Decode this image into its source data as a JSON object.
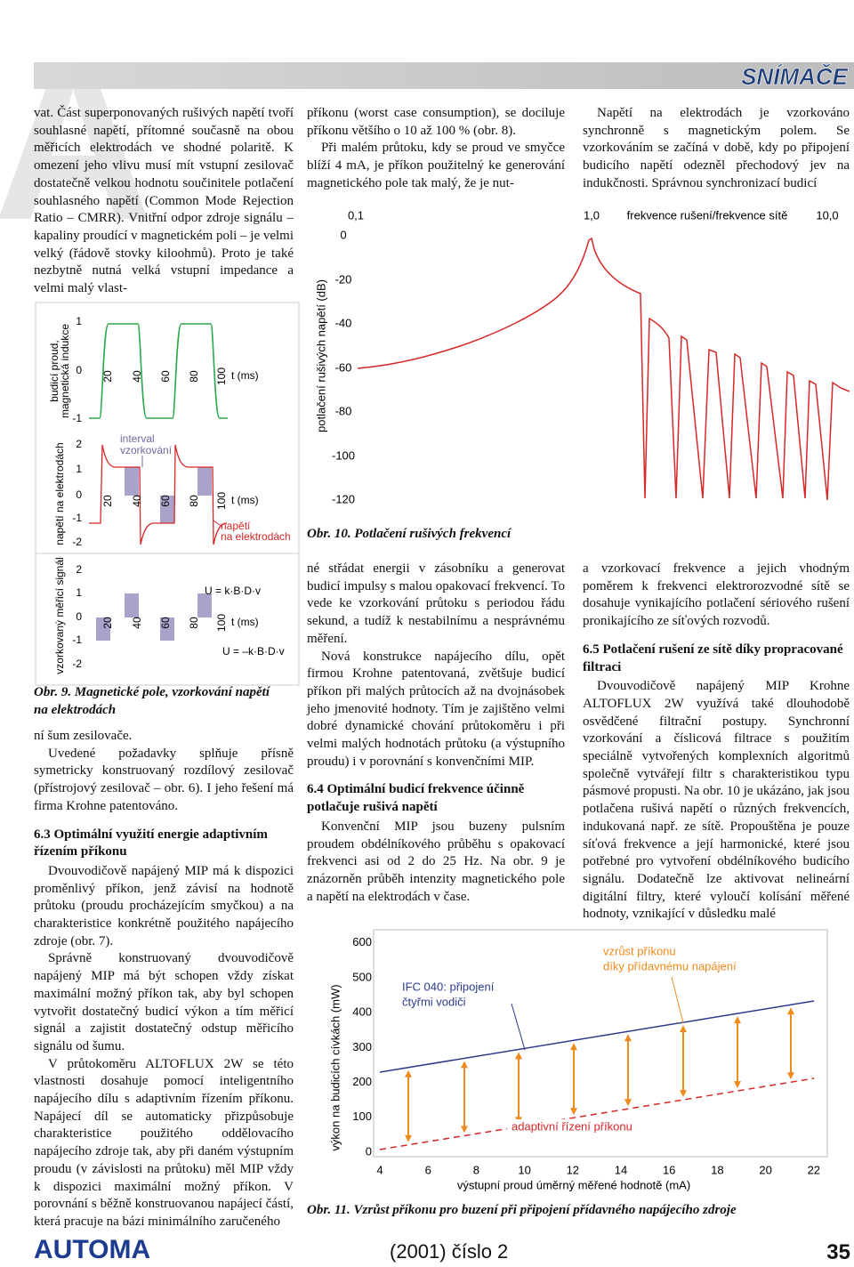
{
  "header": {
    "decor_letter": "A",
    "section": "SNÍMAČE"
  },
  "text": {
    "c1a": [
      "vat. Část superponovaných rušivých napětí tvoří souhlasné napětí, přítomné současně na obou měřicích elektrodách ve shodné polaritě. K omezení jeho vlivu musí mít vstupní zesilovač dostatečně velkou hodnotu součinitele potlačení souhlasného napětí (Common Mode Rejection Ratio – CMRR). Vnitřní odpor zdroje signálu – kapaliny proudící v magnetickém poli – je velmi velký (řádově stovky kiloohmů). Proto je také nezbytně nutná velká vstupní impedance a velmi malý vlast-"
    ],
    "c2a": [
      "příkonu (worst case consumption), se dociluje příkonu většího o 10 až 100 % (obr. 8).",
      "Při malém průtoku, kdy se proud ve smyčce blíží 4 mA, je příkon použitelný ke generování magnetického pole tak malý, že je nut-"
    ],
    "c3a": [
      "Napětí na elektrodách je vzorkováno synchronně s magnetickým polem. Se vzorkováním se začíná v době, kdy po připojení budicího napětí odezněl přechodový jev na indukčnosti. Správnou synchronizací budicí"
    ],
    "c1b": {
      "before": [
        "ní šum zesilovače.",
        "Uvedené požadavky splňuje přísně symetricky konstruovaný rozdílový zesilovač (přístrojový zesilovač – obr. 6). I jeho řešení má firma Krohne patentováno."
      ],
      "heading": "6.3 Optimální využití energie adaptivním řízením příkonu",
      "after": [
        "Dvouvodičově napájený MIP má k dispozici proměnlivý příkon, jenž závisí na hodnotě průtoku (proudu procházejícím smyčkou) a na charakteristice konkrétně použitého napájecího zdroje (obr. 7).",
        "Správně konstruovaný dvouvodičově napájený MIP má být schopen vždy získat maximální možný příkon tak, aby byl schopen vytvořit dostatečný budicí výkon a tím měřicí signál a zajistit dostatečný odstup měřicího signálu od šumu.",
        "V průtokoměru ALTOFLUX 2W se této vlastnosti dosahuje pomocí inteligentního napájecího dílu s adaptivním řízením příkonu. Napájecí díl se automaticky přizpůsobuje charakteristice použitého oddělovacího napájecího zdroje tak, aby při daném výstupním proudu (v závislosti na průtoku) měl MIP vždy k dispozici maximální možný příkon. V porovnání s běžně konstruovanou napájecí částí, která pracuje na bázi minimálního zaručeného"
      ]
    },
    "c2b": {
      "before": [
        "né střádat energii v zásobníku a generovat budicí impulsy s malou opakovací frekvencí. To vede ke vzorkování průtoku s periodou řádu sekund, a tudíž k nestabilnímu a nesprávnému měření.",
        "Nová konstrukce napájecího dílu, opět firmou Krohne patentovaná, zvětšuje budicí příkon při malých průtocích až na dvojnásobek jeho jmenovité hodnoty. Tím je zajištěno velmi dobré dynamické chování průtokoměru i při velmi malých hodnotách průtoku (a výstupního proudu) i v porovnání s konvenčními MIP."
      ],
      "heading": "6.4 Optimální budicí frekvence účinně potlačuje rušivá napětí",
      "after": [
        "Konvenční MIP jsou buzeny pulsním proudem obdélníkového průběhu s opakovací frekvenci asi od 2 do 25 Hz. Na obr. 9 je znázorněn průběh intenzity magnetického pole a napětí na elektrodách v čase."
      ]
    },
    "c3b": {
      "before": [
        "a vzorkovací frekvence a jejich vhodným poměrem k frekvenci elektrorozvodné sítě se dosahuje vynikajícího potlačení sériového rušení pronikajícího ze síťových rozvodů."
      ],
      "heading": "6.5 Potlačení rušení ze sítě díky propracované filtraci",
      "after": [
        "Dvouvodičově napájený MIP Krohne ALTOFLUX 2W využívá také dlouhodobě osvědčené filtrační postupy. Synchronní vzorkování a číslicová filtrace s použitím speciálně vytvořených komplexních algoritmů společně vytvářejí filtr s charakteristikou typu pásmové propusti. Na obr. 10 je ukázáno, jak jsou potlačena rušivá napětí o různých frekvencích, indukovaná např. ze sítě. Propouštěna je pouze síťová frekvence a její harmonické, které jsou potřebné pro vytvoření obdélníkového budicího signálu. Dodatečně lze aktivovat nelineární digitální filtry, které vyloučí kolísání měřené hodnoty, vznikající v důsledku malé"
      ]
    }
  },
  "fig9": {
    "caption": "Obr. 9. Magnetické pole, vzorkování napětí na elektrodách",
    "panels": [
      {
        "ylabel": [
          "budicí proud,",
          "magnetická indukce"
        ],
        "yticks": [
          "1",
          "0",
          "-1"
        ],
        "xticks": [
          "20",
          "40",
          "60",
          "80",
          "100"
        ],
        "xunit": "t (ms)"
      },
      {
        "ylabel": [
          "napětí na elektrodách"
        ],
        "yticks": [
          "2",
          "1",
          "0",
          "-1",
          "-2"
        ],
        "xticks": [
          "20",
          "40",
          "60",
          "80",
          "100"
        ],
        "xunit": "t (ms)"
      },
      {
        "ylabel": [
          "vzorkovaný měřicí signál"
        ],
        "yticks": [
          "2",
          "1",
          "0",
          "-1",
          "-2"
        ],
        "xticks": [
          "20",
          "40",
          "60",
          "80",
          "100"
        ],
        "xunit": "t (ms)"
      }
    ],
    "annotations": {
      "interval": [
        "interval",
        "vzorkování"
      ],
      "electrode": [
        "napětí",
        "na elektrodách"
      ],
      "upos": "U = k·B·D·v",
      "uneg": "U = –k·B·D·v"
    }
  },
  "fig10": {
    "caption": "Obr. 10. Potlačení rušivých frekvencí",
    "ylabel": "potlačení rušivých napětí (dB)",
    "xlabel": "frekvence rušení/frekvence sítě",
    "xticks": [
      "0,1",
      "1,0",
      "10,0"
    ],
    "yticks": [
      "0",
      "-20",
      "-40",
      "-60",
      "-80",
      "-100",
      "-120"
    ]
  },
  "fig11": {
    "caption": "Obr. 11. Vzrůst příkonu pro buzení při připojení přídavného napájecího zdroje",
    "ylabel": "výkon na budicích cívkách (mW)",
    "xlabel": "výstupní proud úměrný měřené hodnotě (mA)",
    "yticks": [
      "0",
      "100",
      "200",
      "300",
      "400",
      "500",
      "600"
    ],
    "xticks": [
      "4",
      "6",
      "8",
      "10",
      "12",
      "14",
      "16",
      "18",
      "20",
      "22"
    ],
    "annotations": {
      "ifc": [
        "IFC 040: připojení",
        "čtyřmi vodiči"
      ],
      "boost": [
        "vzrůst příkonu",
        "díky přídavnému napájení"
      ],
      "adaptive": "adaptivní řízení příkonu"
    }
  },
  "footer": {
    "brand": "AUTOMA",
    "issue": "(2001) číslo 2",
    "page": "35"
  }
}
